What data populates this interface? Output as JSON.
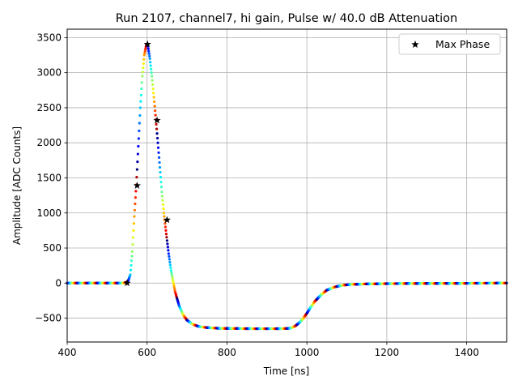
{
  "chart_data": {
    "type": "scatter",
    "title": "Run 2107, channel7, hi gain, Pulse w/ 40.0 dB Attenuation",
    "xlabel": "Time [ns]",
    "ylabel": "Amplitude [ADC Counts]",
    "xlim": [
      400,
      1500
    ],
    "ylim": [
      -840,
      3620
    ],
    "xticks": [
      400,
      600,
      800,
      1000,
      1200,
      1400
    ],
    "yticks": [
      -500,
      0,
      500,
      1000,
      1500,
      2000,
      2500,
      3000,
      3500
    ],
    "xtick_labels": [
      "400",
      "600",
      "800",
      "1000",
      "1200",
      "1400"
    ],
    "ytick_labels": [
      "−500",
      "0",
      "500",
      "1000",
      "1500",
      "2000",
      "2500",
      "3000",
      "3500"
    ],
    "grid": true,
    "colormap": "jet",
    "legend": {
      "position": "top-right",
      "entries": [
        "Max Phase"
      ]
    },
    "pulse_curve": {
      "x": [
        400,
        540,
        552,
        558,
        563,
        568,
        573,
        578,
        583,
        588,
        593,
        598,
        602,
        607,
        612,
        617,
        622,
        627,
        632,
        637,
        642,
        648,
        654,
        660,
        670,
        680,
        690,
        700,
        715,
        730,
        750,
        780,
        820,
        870,
        920,
        950,
        960,
        970,
        980,
        990,
        1000,
        1010,
        1020,
        1035,
        1050,
        1070,
        1090,
        1110,
        1150,
        1200,
        1300,
        1400,
        1500
      ],
      "y": [
        0,
        0,
        20,
        120,
        450,
        950,
        1400,
        1950,
        2500,
        2950,
        3250,
        3400,
        3380,
        3200,
        2950,
        2650,
        2330,
        2000,
        1650,
        1300,
        1000,
        700,
        420,
        180,
        -120,
        -320,
        -450,
        -530,
        -590,
        -620,
        -635,
        -645,
        -648,
        -650,
        -650,
        -648,
        -640,
        -615,
        -570,
        -510,
        -430,
        -340,
        -260,
        -170,
        -100,
        -55,
        -30,
        -20,
        -12,
        -8,
        -5,
        -3,
        0
      ]
    },
    "series": [
      {
        "name": "Max Phase",
        "marker": "star",
        "color": "#000000",
        "x": [
          550,
          575,
          601,
          625,
          650
        ],
        "y": [
          0,
          1390,
          3405,
          2320,
          900
        ]
      }
    ]
  }
}
